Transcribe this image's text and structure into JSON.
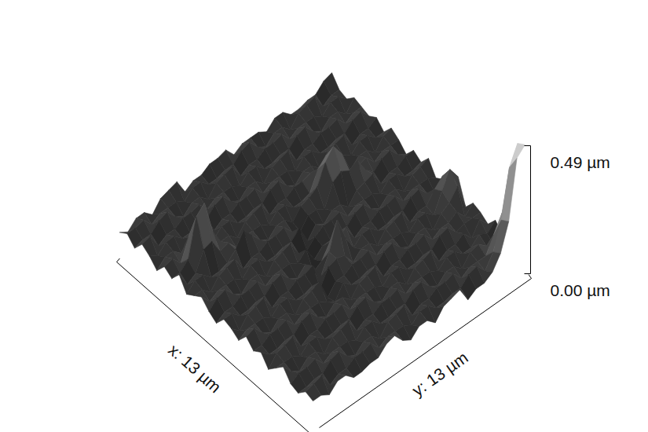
{
  "chart_data": {
    "type": "surface",
    "xlabel": "x: 13 µm",
    "ylabel": "y: 13 µm",
    "xlim": [
      0,
      13
    ],
    "ylim": [
      0,
      13
    ],
    "zlim": [
      0,
      0.49
    ],
    "zticks": [
      {
        "value": 0,
        "label": "0.00 µm"
      },
      {
        "value": 0.49,
        "label": "0.49 µm"
      }
    ],
    "x": [
      0,
      0.5,
      1,
      1.5,
      2,
      2.5,
      3,
      3.5,
      4,
      4.5,
      5,
      5.5,
      6,
      6.5,
      7,
      7.5,
      8,
      8.5,
      9,
      9.5,
      10,
      10.5,
      11,
      11.5,
      12,
      12.5,
      13
    ],
    "y": [
      0,
      0.5,
      1,
      1.5,
      2,
      2.5,
      3,
      3.5,
      4,
      4.5,
      5,
      5.5,
      6,
      6.5,
      7,
      7.5,
      8,
      8.5,
      9,
      9.5,
      10,
      10.5,
      11,
      11.5,
      12,
      12.5,
      13
    ],
    "z": [
      [
        0.05,
        0.07,
        0.04,
        0.08,
        0.06,
        0.03,
        0.07,
        0.05,
        0.09,
        0.04,
        0.06,
        0.08,
        0.05,
        0.03,
        0.07,
        0.06,
        0.04,
        0.08,
        0.05,
        0.07,
        0.03,
        0.06,
        0.09,
        0.05,
        0.04,
        0.07,
        0.06
      ],
      [
        0.03,
        0.07,
        0.05,
        0.09,
        0.04,
        0.06,
        0.08,
        0.05,
        0.03,
        0.07,
        0.06,
        0.04,
        0.08,
        0.05,
        0.07,
        0.03,
        0.06,
        0.09,
        0.05,
        0.04,
        0.07,
        0.06,
        0.05,
        0.07,
        0.04,
        0.08,
        0.06
      ],
      [
        0.06,
        0.08,
        0.05,
        0.03,
        0.07,
        0.06,
        0.04,
        0.08,
        0.05,
        0.07,
        0.03,
        0.06,
        0.09,
        0.05,
        0.04,
        0.07,
        0.06,
        0.05,
        0.07,
        0.04,
        0.08,
        0.06,
        0.03,
        0.07,
        0.05,
        0.09,
        0.04
      ],
      [
        0.06,
        0.04,
        0.08,
        0.05,
        0.07,
        0.03,
        0.12,
        0.22,
        0.12,
        0.04,
        0.07,
        0.06,
        0.05,
        0.07,
        0.04,
        0.08,
        0.06,
        0.03,
        0.07,
        0.05,
        0.09,
        0.04,
        0.06,
        0.08,
        0.05,
        0.03,
        0.07
      ],
      [
        0.03,
        0.06,
        0.09,
        0.05,
        0.04,
        0.07,
        0.14,
        0.25,
        0.13,
        0.04,
        0.08,
        0.06,
        0.03,
        0.07,
        0.05,
        0.09,
        0.04,
        0.06,
        0.08,
        0.05,
        0.03,
        0.07,
        0.06,
        0.04,
        0.08,
        0.05,
        0.07
      ],
      [
        0.07,
        0.06,
        0.05,
        0.07,
        0.04,
        0.08,
        0.06,
        0.12,
        0.07,
        0.05,
        0.09,
        0.04,
        0.06,
        0.08,
        0.05,
        0.03,
        0.07,
        0.06,
        0.04,
        0.08,
        0.05,
        0.07,
        0.03,
        0.06,
        0.09,
        0.05,
        0.04
      ],
      [
        0.08,
        0.06,
        0.03,
        0.07,
        0.05,
        0.09,
        0.04,
        0.06,
        0.08,
        0.08,
        0.03,
        0.07,
        0.06,
        0.04,
        0.08,
        0.05,
        0.07,
        0.03,
        0.06,
        0.09,
        0.05,
        0.04,
        0.07,
        0.06,
        0.05,
        0.07,
        0.04
      ],
      [
        0.09,
        0.04,
        0.06,
        0.08,
        0.05,
        0.03,
        0.07,
        0.06,
        0.04,
        0.13,
        0.05,
        0.07,
        0.03,
        0.06,
        0.09,
        0.05,
        0.04,
        0.07,
        0.06,
        0.05,
        0.07,
        0.04,
        0.08,
        0.06,
        0.03,
        0.07,
        0.05
      ],
      [
        0.03,
        0.07,
        0.06,
        0.04,
        0.08,
        0.05,
        0.07,
        0.03,
        0.06,
        0.09,
        0.05,
        0.04,
        0.07,
        0.06,
        0.05,
        0.07,
        0.04,
        0.08,
        0.06,
        0.03,
        0.07,
        0.05,
        0.09,
        0.04,
        0.06,
        0.08,
        0.05
      ],
      [
        0.05,
        0.07,
        0.03,
        0.06,
        0.09,
        0.05,
        0.04,
        0.07,
        0.06,
        0.05,
        0.07,
        0.04,
        0.08,
        0.06,
        0.03,
        0.07,
        0.05,
        0.09,
        0.04,
        0.06,
        0.08,
        0.05,
        0.03,
        0.07,
        0.06,
        0.04,
        0.08
      ],
      [
        0.05,
        0.04,
        0.07,
        0.06,
        0.05,
        0.07,
        0.04,
        0.08,
        0.06,
        0.03,
        0.07,
        0.05,
        0.09,
        0.04,
        0.06,
        0.08,
        0.02,
        0.01,
        0.02,
        0.06,
        0.04,
        0.08,
        0.05,
        0.07,
        0.03,
        0.06,
        0.09
      ],
      [
        0.07,
        0.04,
        0.08,
        0.06,
        0.03,
        0.07,
        0.05,
        0.09,
        0.04,
        0.06,
        0.08,
        0.05,
        0.03,
        0.07,
        0.01,
        0.02,
        0.08,
        0.05,
        0.07,
        0.03,
        0.06,
        0.09,
        0.05,
        0.04,
        0.07,
        0.06,
        0.05
      ],
      [
        0.07,
        0.05,
        0.09,
        0.04,
        0.06,
        0.08,
        0.05,
        0.03,
        0.07,
        0.06,
        0.04,
        0.08,
        0.02,
        0.01,
        0.03,
        0.09,
        0.09,
        0.05,
        0.04,
        0.07,
        0.06,
        0.05,
        0.07,
        0.04,
        0.08,
        0.06,
        0.03
      ],
      [
        0.08,
        0.05,
        0.03,
        0.07,
        0.06,
        0.04,
        0.08,
        0.05,
        0.07,
        0.03,
        0.02,
        0.01,
        0.05,
        0.04,
        0.08,
        0.19,
        0.08,
        0.07,
        0.04,
        0.08,
        0.06,
        0.03,
        0.07,
        0.05,
        0.09,
        0.04,
        0.06
      ],
      [
        0.04,
        0.08,
        0.05,
        0.07,
        0.03,
        0.06,
        0.09,
        0.05,
        0.04,
        0.07,
        0.06,
        0.05,
        0.07,
        0.04,
        0.08,
        0.1,
        0.03,
        0.07,
        0.05,
        0.09,
        0.04,
        0.06,
        0.08,
        0.05,
        0.03,
        0.07,
        0.06
      ],
      [
        0.06,
        0.09,
        0.05,
        0.04,
        0.07,
        0.06,
        0.05,
        0.07,
        0.04,
        0.08,
        0.06,
        0.03,
        0.07,
        0.05,
        0.09,
        0.04,
        0.06,
        0.08,
        0.05,
        0.03,
        0.07,
        0.06,
        0.04,
        0.08,
        0.05,
        0.07,
        0.03
      ],
      [
        0.06,
        0.05,
        0.07,
        0.04,
        0.08,
        0.06,
        0.03,
        0.07,
        0.05,
        0.1,
        0.04,
        0.06,
        0.08,
        0.05,
        0.03,
        0.07,
        0.06,
        0.04,
        0.08,
        0.05,
        0.07,
        0.03,
        0.06,
        0.09,
        0.05,
        0.04,
        0.07
      ],
      [
        0.06,
        0.03,
        0.07,
        0.05,
        0.09,
        0.04,
        0.06,
        0.08,
        0.12,
        0.17,
        0.12,
        0.06,
        0.04,
        0.08,
        0.05,
        0.07,
        0.03,
        0.06,
        0.09,
        0.05,
        0.04,
        0.07,
        0.06,
        0.05,
        0.07,
        0.04,
        0.08
      ],
      [
        0.04,
        0.06,
        0.08,
        0.05,
        0.03,
        0.07,
        0.06,
        0.04,
        0.15,
        0.21,
        0.14,
        0.03,
        0.06,
        0.09,
        0.05,
        0.04,
        0.07,
        0.06,
        0.05,
        0.07,
        0.04,
        0.08,
        0.06,
        0.03,
        0.07,
        0.05,
        0.09
      ],
      [
        0.07,
        0.06,
        0.04,
        0.08,
        0.05,
        0.07,
        0.03,
        0.06,
        0.11,
        0.16,
        0.12,
        0.07,
        0.06,
        0.05,
        0.07,
        0.04,
        0.08,
        0.06,
        0.03,
        0.07,
        0.05,
        0.09,
        0.04,
        0.06,
        0.08,
        0.05,
        0.03
      ],
      [
        0.07,
        0.03,
        0.06,
        0.09,
        0.05,
        0.04,
        0.07,
        0.06,
        0.05,
        0.07,
        0.14,
        0.08,
        0.06,
        0.03,
        0.07,
        0.05,
        0.09,
        0.04,
        0.06,
        0.08,
        0.05,
        0.03,
        0.07,
        0.06,
        0.04,
        0.08,
        0.05
      ],
      [
        0.04,
        0.07,
        0.06,
        0.05,
        0.07,
        0.04,
        0.08,
        0.06,
        0.03,
        0.07,
        0.08,
        0.09,
        0.04,
        0.06,
        0.08,
        0.05,
        0.03,
        0.07,
        0.06,
        0.04,
        0.08,
        0.05,
        0.07,
        0.03,
        0.06,
        0.09,
        0.05
      ],
      [
        0.04,
        0.08,
        0.06,
        0.03,
        0.07,
        0.05,
        0.09,
        0.04,
        0.06,
        0.08,
        0.05,
        0.03,
        0.07,
        0.06,
        0.04,
        0.08,
        0.05,
        0.07,
        0.03,
        0.06,
        0.09,
        0.05,
        0.04,
        0.07,
        0.06,
        0.05,
        0.07
      ],
      [
        0.05,
        0.09,
        0.04,
        0.06,
        0.08,
        0.05,
        0.03,
        0.07,
        0.06,
        0.04,
        0.08,
        0.05,
        0.07,
        0.03,
        0.06,
        0.09,
        0.05,
        0.04,
        0.07,
        0.06,
        0.05,
        0.07,
        0.04,
        0.08,
        0.06,
        0.1,
        0.12
      ],
      [
        0.05,
        0.03,
        0.07,
        0.06,
        0.04,
        0.08,
        0.05,
        0.07,
        0.03,
        0.06,
        0.09,
        0.05,
        0.04,
        0.07,
        0.06,
        0.05,
        0.09,
        0.11,
        0.09,
        0.08,
        0.06,
        0.03,
        0.07,
        0.05,
        0.12,
        0.2,
        0.22
      ],
      [
        0.08,
        0.05,
        0.07,
        0.03,
        0.06,
        0.09,
        0.05,
        0.04,
        0.07,
        0.06,
        0.05,
        0.07,
        0.04,
        0.08,
        0.06,
        0.03,
        0.12,
        0.17,
        0.13,
        0.04,
        0.06,
        0.08,
        0.05,
        0.03,
        0.18,
        0.38,
        0.44
      ],
      [
        0.09,
        0.05,
        0.04,
        0.07,
        0.06,
        0.05,
        0.07,
        0.04,
        0.08,
        0.06,
        0.03,
        0.07,
        0.05,
        0.09,
        0.04,
        0.06,
        0.08,
        0.12,
        0.03,
        0.07,
        0.06,
        0.04,
        0.08,
        0.05,
        0.22,
        0.45,
        0.47
      ]
    ]
  }
}
